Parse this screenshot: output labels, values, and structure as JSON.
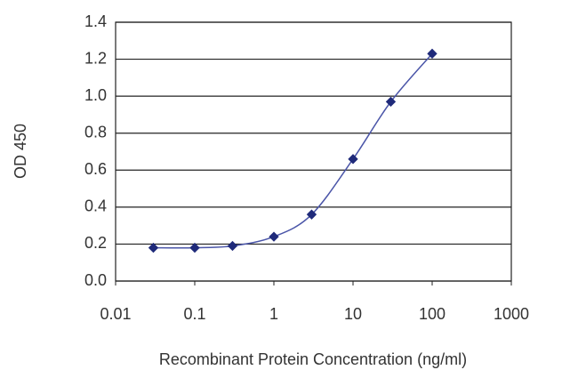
{
  "chart_data": {
    "type": "line",
    "x_label": "Recombinant Protein Concentration (ng/ml)",
    "y_label": "OD 450",
    "x": [
      0.03,
      0.1,
      0.3,
      1,
      3,
      10,
      30,
      100
    ],
    "series": [
      {
        "color": "#1f2a7a",
        "values": [
          0.18,
          0.18,
          0.19,
          0.24,
          0.36,
          0.66,
          0.97,
          1.23
        ]
      }
    ],
    "xlim": [
      0.01,
      1000
    ],
    "xticks": [
      0.01,
      0.1,
      1,
      10,
      100,
      1000
    ],
    "xscale": "log",
    "ylim": [
      0,
      1.4
    ],
    "yticks": [
      {
        "value": 0,
        "label": "0.0"
      },
      0.2,
      0.4,
      0.6,
      0.8,
      {
        "value": 1,
        "label": "1.0"
      },
      1.2,
      1.4
    ],
    "grid": true
  }
}
